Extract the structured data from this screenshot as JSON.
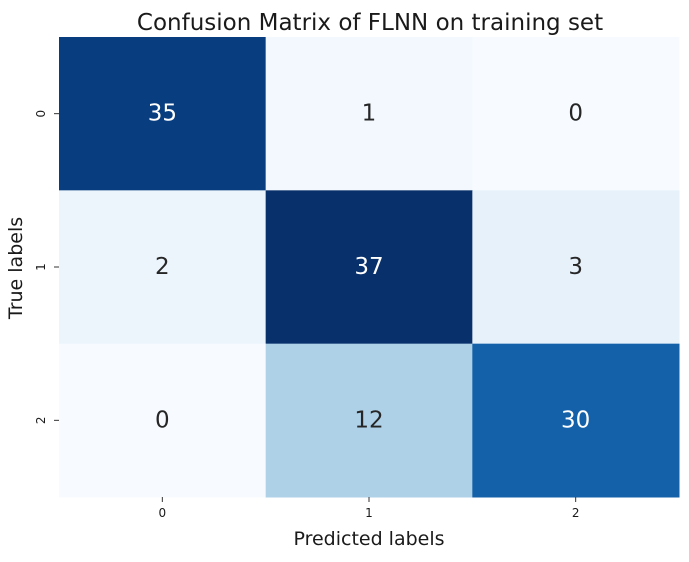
{
  "chart_data": {
    "type": "heatmap",
    "title": "Confusion Matrix of FLNN on training set",
    "xlabel": "Predicted labels",
    "ylabel": "True labels",
    "x_categories": [
      "0",
      "1",
      "2"
    ],
    "y_categories": [
      "0",
      "1",
      "2"
    ],
    "values": [
      [
        35,
        1,
        0
      ],
      [
        2,
        37,
        3
      ],
      [
        0,
        12,
        30
      ]
    ],
    "colormap": "Blues",
    "colorbar": false,
    "value_range": [
      0,
      37
    ],
    "annotation_color_dark_cells": "#ffffff",
    "annotation_color_light_cells": "#262626"
  }
}
